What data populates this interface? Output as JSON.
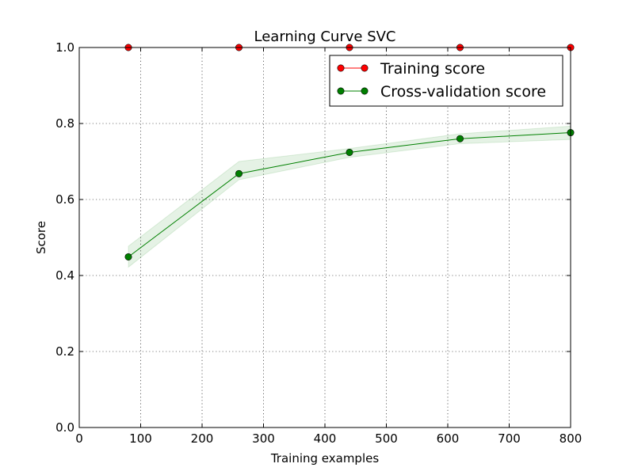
{
  "chart_data": {
    "type": "line",
    "title": "Learning Curve SVC",
    "xlabel": "Training examples",
    "ylabel": "Score",
    "xlim": [
      0,
      800
    ],
    "ylim": [
      0.0,
      1.0
    ],
    "xticks": [
      0,
      100,
      200,
      300,
      400,
      500,
      600,
      700,
      800
    ],
    "yticks": [
      0.0,
      0.2,
      0.4,
      0.6,
      0.8,
      1.0
    ],
    "xtick_labels": [
      "0",
      "100",
      "200",
      "300",
      "400",
      "500",
      "600",
      "700",
      "800"
    ],
    "ytick_labels": [
      "0.0",
      "0.2",
      "0.4",
      "0.6",
      "0.8",
      "1.0"
    ],
    "grid": true,
    "legend_position": "top-right",
    "x": [
      80,
      260,
      440,
      620,
      800
    ],
    "series": [
      {
        "name": "Training score",
        "color": "#ff0000",
        "marker_color": "#ff0000",
        "values": [
          1.0,
          1.0,
          1.0,
          1.0,
          1.0
        ],
        "band_low": [
          1.0,
          1.0,
          1.0,
          1.0,
          1.0
        ],
        "band_high": [
          1.0,
          1.0,
          1.0,
          1.0,
          1.0
        ]
      },
      {
        "name": "Cross-validation score",
        "color": "#008000",
        "marker_color": "#007f00",
        "band_color": "#008000",
        "values": [
          0.449,
          0.668,
          0.724,
          0.76,
          0.776
        ],
        "band_low": [
          0.422,
          0.652,
          0.711,
          0.747,
          0.758
        ],
        "band_high": [
          0.477,
          0.7,
          0.734,
          0.773,
          0.793
        ]
      }
    ]
  }
}
